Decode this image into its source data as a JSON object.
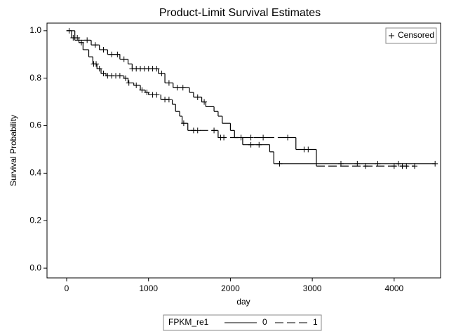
{
  "chart_data": {
    "type": "survival",
    "title": "Product-Limit Survival Estimates",
    "x_label": "day",
    "y_label": "Survival Probability",
    "xlim": [
      -240,
      4567
    ],
    "ylim": [
      -0.041,
      1.032
    ],
    "xticks": [
      0,
      1000,
      2000,
      3000,
      4000
    ],
    "yticks": [
      {
        "value": 0,
        "label": "0.0"
      },
      0.2,
      0.4,
      0.6,
      0.8,
      {
        "value": 1,
        "label": "1.0"
      }
    ],
    "censored_label": "Censored",
    "censored_legend_position": "top-right",
    "legend_title": "FPKM_re1",
    "series": [
      {
        "name": "0",
        "color": "#000000",
        "line_style": "solid",
        "x": [
          0,
          100,
          300,
          400,
          500,
          650,
          750,
          800,
          1120,
          1200,
          1300,
          1500,
          1550,
          1650,
          1700,
          1800,
          1850,
          1900,
          2000,
          2050,
          2150,
          2480,
          2530,
          4500
        ],
        "values": [
          1,
          0.96,
          0.94,
          0.92,
          0.9,
          0.88,
          0.86,
          0.84,
          0.82,
          0.78,
          0.76,
          0.74,
          0.72,
          0.7,
          0.68,
          0.66,
          0.64,
          0.61,
          0.58,
          0.55,
          0.52,
          0.49,
          0.44,
          0.44
        ],
        "censored": {
          "x": [
            30,
            250,
            350,
            450,
            550,
            620,
            700,
            800,
            850,
            900,
            950,
            1000,
            1050,
            1100,
            1160,
            1250,
            1350,
            1420,
            1600,
            1680,
            2130,
            2250,
            2350,
            2600,
            3350,
            3550,
            3800,
            4050,
            4500
          ],
          "values": [
            1,
            0.96,
            0.94,
            0.92,
            0.9,
            0.9,
            0.88,
            0.84,
            0.84,
            0.84,
            0.84,
            0.84,
            0.84,
            0.84,
            0.82,
            0.78,
            0.76,
            0.76,
            0.72,
            0.7,
            0.55,
            0.52,
            0.52,
            0.44,
            0.44,
            0.44,
            0.44,
            0.44,
            0.44
          ]
        }
      },
      {
        "name": "1",
        "color": "#000000",
        "line_style": "dashed",
        "x": [
          0,
          60,
          150,
          200,
          270,
          320,
          370,
          420,
          480,
          700,
          750,
          820,
          900,
          960,
          1000,
          1150,
          1290,
          1330,
          1380,
          1410,
          1480,
          1850,
          2800,
          3050,
          4250
        ],
        "values": [
          1,
          0.97,
          0.95,
          0.92,
          0.89,
          0.86,
          0.84,
          0.82,
          0.81,
          0.8,
          0.78,
          0.77,
          0.75,
          0.74,
          0.73,
          0.71,
          0.69,
          0.66,
          0.64,
          0.61,
          0.58,
          0.55,
          0.5,
          0.43,
          0.43
        ],
        "censored": {
          "x": [
            80,
            130,
            180,
            330,
            360,
            400,
            450,
            500,
            550,
            600,
            650,
            720,
            760,
            850,
            920,
            980,
            1050,
            1100,
            1200,
            1250,
            1430,
            1550,
            1600,
            1800,
            1880,
            1920,
            2250,
            2400,
            2700,
            2900,
            2950,
            3650,
            4000,
            4100,
            4150,
            4250
          ],
          "values": [
            0.97,
            0.97,
            0.95,
            0.86,
            0.86,
            0.84,
            0.82,
            0.81,
            0.81,
            0.81,
            0.81,
            0.8,
            0.78,
            0.77,
            0.75,
            0.74,
            0.73,
            0.73,
            0.71,
            0.71,
            0.61,
            0.58,
            0.58,
            0.58,
            0.55,
            0.55,
            0.55,
            0.55,
            0.55,
            0.5,
            0.5,
            0.43,
            0.43,
            0.43,
            0.43,
            0.43
          ]
        }
      }
    ]
  }
}
